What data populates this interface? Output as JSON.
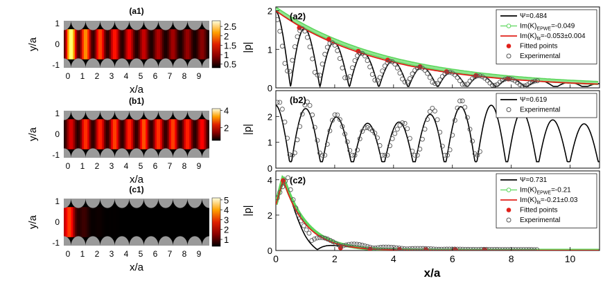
{
  "chart_data": [
    {
      "id": "a1",
      "type": "heatmap",
      "panel_label": "(a1)",
      "xlabel": "x/a",
      "ylabel": "y/a",
      "xticks": [
        "0",
        "1",
        "2",
        "3",
        "4",
        "5",
        "6",
        "7",
        "8",
        "9"
      ],
      "yticks": [
        "1",
        "0",
        "-1"
      ],
      "colorbar_ticks": [
        "2.5",
        "2",
        "1.5",
        "1",
        "0.5"
      ],
      "colorbar_range": [
        0.3,
        2.8
      ],
      "intensity_by_cell": [
        2.6,
        1.9,
        1.6,
        1.4,
        1.25,
        1.1,
        1.0,
        0.95,
        0.9,
        0.85
      ]
    },
    {
      "id": "b1",
      "type": "heatmap",
      "panel_label": "(b1)",
      "xlabel": "x/a",
      "ylabel": "y/a",
      "xticks": [
        "0",
        "1",
        "2",
        "3",
        "4",
        "5",
        "6",
        "7",
        "8",
        "9"
      ],
      "yticks": [
        "1",
        "0",
        "-1"
      ],
      "colorbar_ticks": [
        "4",
        "2"
      ],
      "colorbar_range": [
        0.5,
        4.2
      ],
      "intensity_by_cell": [
        1.8,
        2.3,
        2.2,
        2.4,
        2.2,
        2.5,
        2.3,
        2.4,
        2.2,
        2.0
      ]
    },
    {
      "id": "c1",
      "type": "heatmap",
      "panel_label": "(c1)",
      "xlabel": "x/a",
      "ylabel": "y/a",
      "xticks": [
        "0",
        "1",
        "2",
        "3",
        "4",
        "5",
        "6",
        "7",
        "8",
        "9"
      ],
      "yticks": [
        "1",
        "0",
        "-1"
      ],
      "colorbar_ticks": [
        "5",
        "4",
        "3",
        "2",
        "1"
      ],
      "colorbar_range": [
        0.3,
        5.2
      ],
      "intensity_by_cell": [
        5.0,
        1.2,
        0.5,
        0.35,
        0.3,
        0.3,
        0.3,
        0.3,
        0.3,
        0.3
      ]
    },
    {
      "id": "a2",
      "type": "line",
      "panel_label": "(a2)",
      "ylabel": "|p|",
      "xlim": [
        0,
        11
      ],
      "ylim": [
        0,
        2.1
      ],
      "yticks": [
        "0",
        "1",
        "2"
      ],
      "legend_position": "top-right",
      "legend": [
        {
          "text": "Ψ=0.484",
          "style": "line",
          "color": "#000000"
        },
        {
          "text": "Im(K)",
          "sub": "EPWE",
          "suffix": "=-0.049",
          "style": "line-marker",
          "color": "#5cd65c"
        },
        {
          "text": "Im(K)",
          "sub": "fit",
          "suffix": "=-0.053±0.004",
          "style": "line",
          "color": "#e0201a"
        },
        {
          "text": "Fitted points",
          "style": "dot",
          "color": "#e0201a"
        },
        {
          "text": "Experimental",
          "style": "circle",
          "color": "#555555"
        }
      ],
      "series": [
        {
          "name": "Ψ=0.484",
          "kind": "oscillation",
          "A": 2.0,
          "decay": 0.265,
          "period": 1.0,
          "floor": 0.04
        },
        {
          "name": "Im(K)EPWE=-0.049",
          "kind": "exp",
          "A": 2.05,
          "decay": 0.255,
          "band": 0.06
        },
        {
          "name": "Im(K)fit=-0.053±0.004",
          "kind": "exp",
          "A": 2.0,
          "decay": 0.275
        },
        {
          "name": "Fitted points",
          "kind": "points",
          "x": [
            0.8,
            1.8,
            2.8,
            3.8,
            4.9,
            5.8,
            6.8,
            7.9
          ],
          "y": [
            1.56,
            1.26,
            0.95,
            0.72,
            0.55,
            0.42,
            0.32,
            0.23
          ]
        },
        {
          "name": "Experimental",
          "kind": "osc-points",
          "A": 1.95,
          "decay": 0.265,
          "period": 1.0,
          "xmax": 8.9,
          "step": 0.085,
          "floor": 0.25
        }
      ]
    },
    {
      "id": "b2",
      "type": "line",
      "panel_label": "(b2)",
      "ylabel": "|p|",
      "xlim": [
        0,
        11
      ],
      "ylim": [
        0,
        3.0
      ],
      "yticks": [
        "0",
        "1",
        "2"
      ],
      "legend_position": "top-right",
      "legend": [
        {
          "text": "Ψ=0.619",
          "style": "line",
          "color": "#000000"
        },
        {
          "text": "Experimental",
          "style": "circle",
          "color": "#555555"
        }
      ],
      "series": [
        {
          "name": "Ψ=0.619",
          "kind": "standing",
          "A": 2.45,
          "period": 1.05,
          "floor": 0.25
        },
        {
          "name": "Experimental",
          "kind": "standing-points",
          "A": 2.45,
          "period": 1.05,
          "xmax": 7.0,
          "step": 0.085,
          "floor": 0.5
        }
      ]
    },
    {
      "id": "c2",
      "type": "line",
      "panel_label": "(c2)",
      "ylabel": "|p|",
      "xlabel": "x/a",
      "xlim": [
        0,
        11
      ],
      "ylim": [
        0,
        4.5
      ],
      "yticks": [
        "0",
        "2",
        "4"
      ],
      "xticks": [
        "0",
        "2",
        "4",
        "6",
        "8",
        "10"
      ],
      "legend_position": "top-right",
      "legend": [
        {
          "text": "Ψ=0.731",
          "style": "line",
          "color": "#000000"
        },
        {
          "text": "Im(K)",
          "sub": "EPWE",
          "suffix": "=-0.21",
          "style": "line-marker",
          "color": "#5cd65c"
        },
        {
          "text": "Im(K)",
          "sub": "fit",
          "suffix": "=-0.21±0.03",
          "style": "line",
          "color": "#e0201a"
        },
        {
          "text": "Fitted points",
          "style": "dot",
          "color": "#e0201a"
        },
        {
          "text": "Experimental",
          "style": "circle",
          "color": "#555555"
        }
      ],
      "series": [
        {
          "name": "Ψ=0.731",
          "kind": "fastdecay",
          "A": 4.0
        },
        {
          "name": "Im(K)EPWE=-0.21",
          "kind": "exp-peak",
          "A": 4.15,
          "decay": 1.25,
          "peak": 0.25
        },
        {
          "name": "Im(K)fit=-0.21±0.03",
          "kind": "exp-peak",
          "A": 4.0,
          "decay": 1.3,
          "peak": 0.25
        },
        {
          "name": "Fitted points",
          "kind": "points",
          "x": [
            0.25,
            2.2,
            3.2,
            4.2,
            5.1,
            6.1,
            7.1
          ],
          "y": [
            3.95,
            0.15,
            0.08,
            0.06,
            0.05,
            0.05,
            0.05
          ]
        },
        {
          "name": "Experimental",
          "kind": "c2-points",
          "xmax": 8.9,
          "step": 0.09
        }
      ]
    }
  ]
}
